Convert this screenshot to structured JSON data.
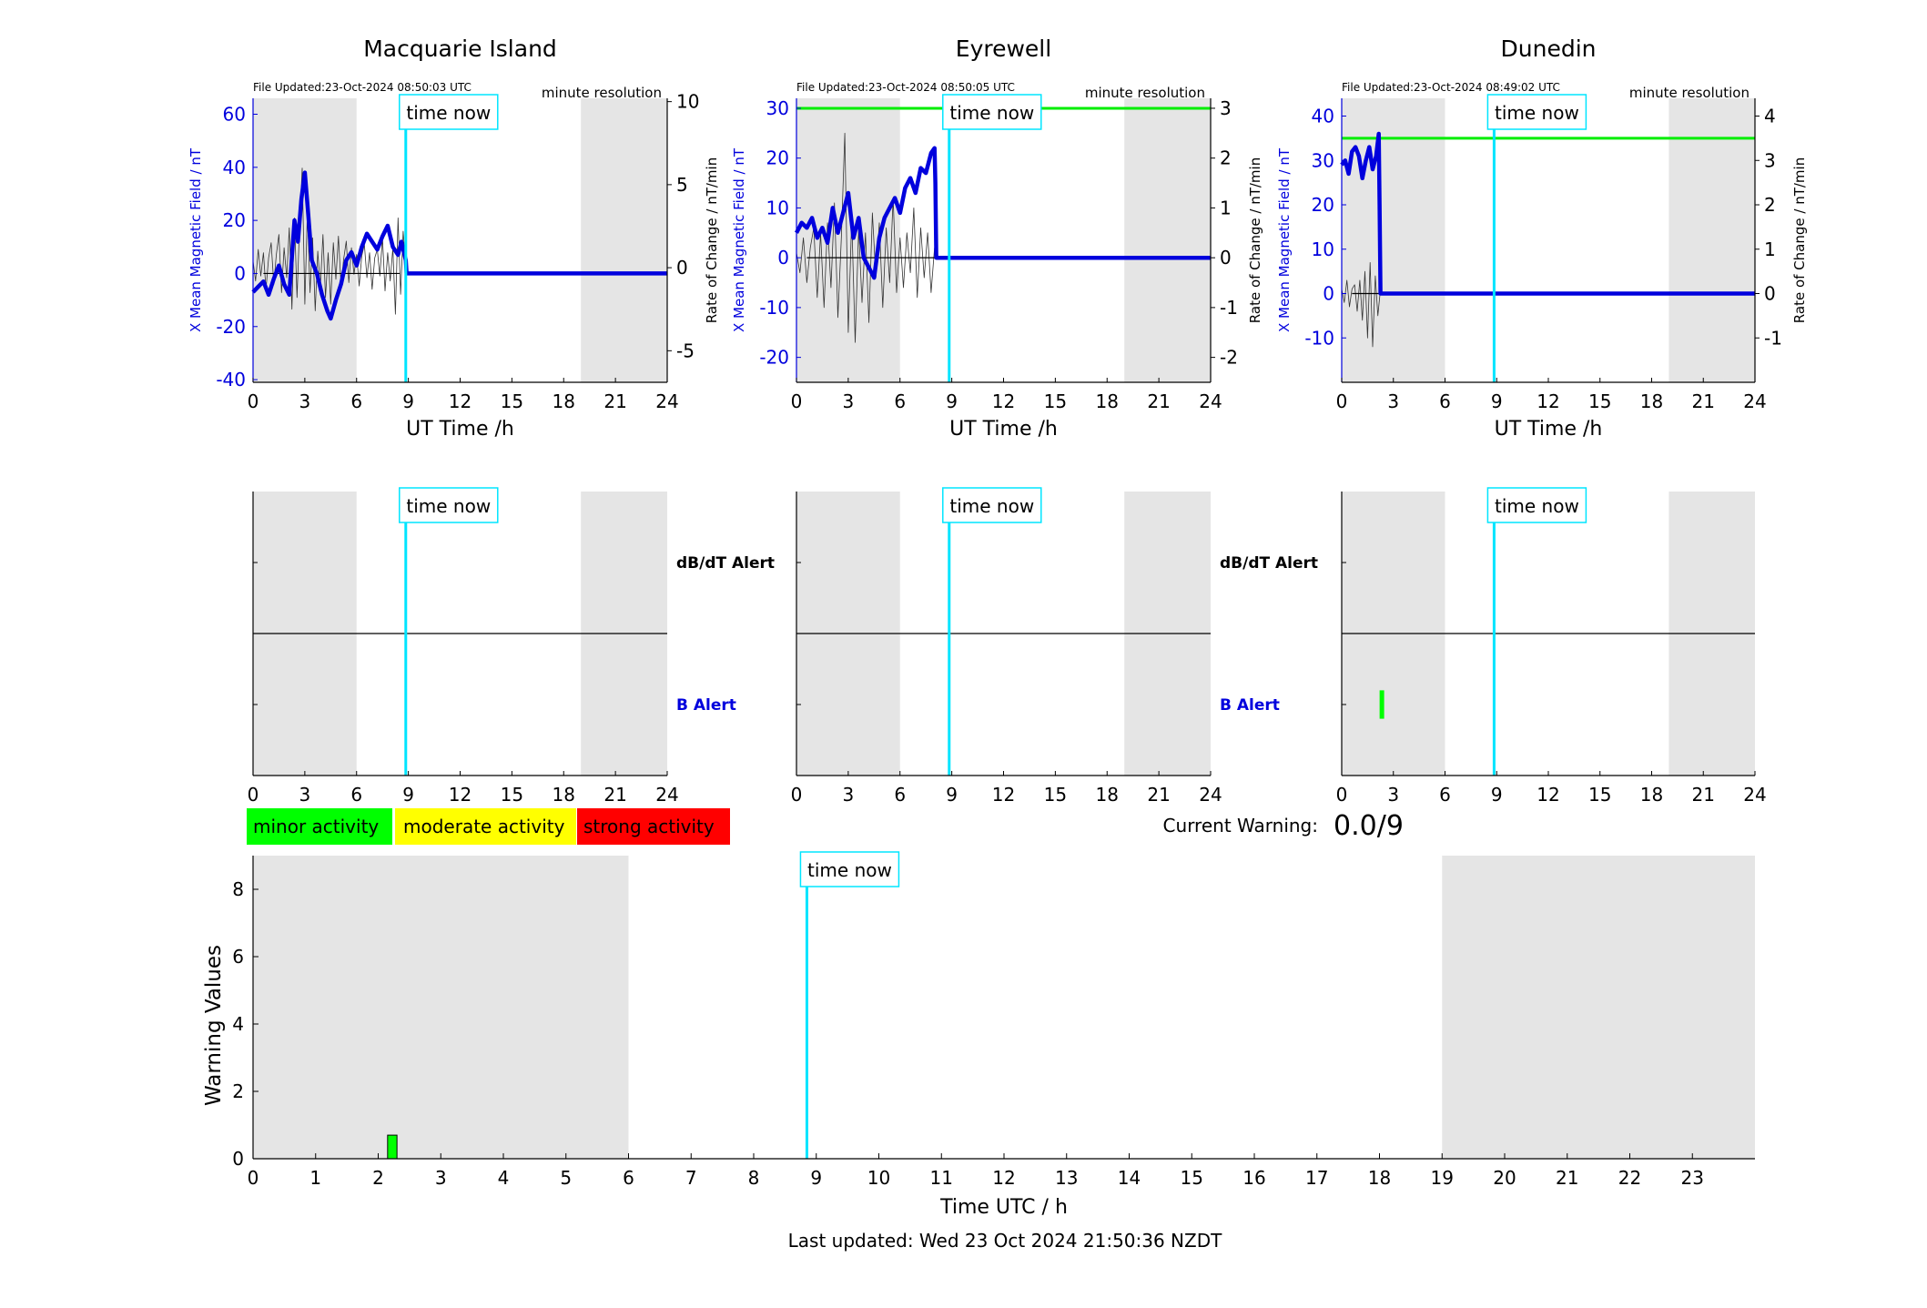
{
  "figure": {
    "last_updated": "Last updated: Wed 23 Oct 2024 21:50:36 NZDT",
    "current_warning_label": "Current Warning:",
    "current_warning_value": "0.0/9"
  },
  "legend": {
    "minor": {
      "label": "minor activity",
      "color": "#00ff00"
    },
    "moderate": {
      "label": "moderate activity",
      "color": "#ffff00"
    },
    "strong": {
      "label": "strong activity",
      "color": "#ff0000"
    }
  },
  "chart_data": [
    {
      "type": "line",
      "station": "Macquarie Island",
      "title": "Macquarie Island",
      "file_updated": "File Updated:23-Oct-2024 08:50:03 UTC",
      "resolution": "minute resolution",
      "time_now_label": "time now",
      "time_now": 8.85,
      "night_shading": [
        [
          0,
          6
        ],
        [
          19,
          24
        ]
      ],
      "xlabel": "UT Time /h",
      "ylabel": "X Mean Magnetic Field / nT",
      "y2label": "Rate of Change / nT/min",
      "xlim": [
        0,
        24
      ],
      "ylim": [
        -41,
        66
      ],
      "y2lim": [
        -6.9,
        10.2
      ],
      "xticks": [
        0,
        3,
        6,
        9,
        12,
        15,
        18,
        21,
        24
      ],
      "yticks": [
        -40,
        -20,
        0,
        20,
        40,
        60
      ],
      "y2ticks": [
        -5,
        0,
        5,
        10
      ],
      "series": [
        {
          "axis": "left",
          "color": "#0000dd",
          "x": [
            0,
            0.3,
            0.6,
            0.9,
            1.2,
            1.5,
            1.8,
            2.1,
            2.4,
            2.6,
            2.8,
            3.0,
            3.2,
            3.4,
            3.7,
            4.0,
            4.3,
            4.5,
            4.8,
            5.1,
            5.4,
            5.7,
            6.0,
            6.3,
            6.6,
            6.9,
            7.2,
            7.5,
            7.8,
            8.1,
            8.4,
            8.6,
            8.85,
            8.9,
            24
          ],
          "y": [
            -7,
            -5,
            -3,
            -8,
            -2,
            3,
            -4,
            -8,
            20,
            12,
            28,
            38,
            22,
            5,
            0,
            -8,
            -14,
            -17,
            -10,
            -4,
            5,
            8,
            3,
            10,
            15,
            12,
            9,
            14,
            18,
            10,
            7,
            12,
            5,
            0,
            0
          ]
        },
        {
          "axis": "right",
          "color": "#333333",
          "width": 0.8,
          "x": [
            0,
            0.15,
            0.3,
            0.45,
            0.6,
            0.75,
            0.9,
            1.05,
            1.2,
            1.35,
            1.5,
            1.65,
            1.8,
            1.95,
            2.1,
            2.25,
            2.4,
            2.55,
            2.7,
            2.85,
            3.0,
            3.15,
            3.3,
            3.45,
            3.6,
            3.75,
            3.9,
            4.05,
            4.2,
            4.35,
            4.5,
            4.65,
            4.8,
            4.95,
            5.1,
            5.25,
            5.4,
            5.55,
            5.7,
            5.85,
            6.0,
            6.15,
            6.3,
            6.45,
            6.6,
            6.75,
            6.9,
            7.05,
            7.2,
            7.35,
            7.5,
            7.65,
            7.8,
            7.95,
            8.1,
            8.25,
            8.4,
            8.55,
            8.7,
            8.85
          ],
          "y": [
            0.4,
            -0.8,
            1.1,
            -0.5,
            0.9,
            -1.3,
            0.6,
            1.5,
            -1.0,
            0.8,
            2.0,
            -1.5,
            1.2,
            -0.6,
            2.4,
            -2.5,
            3.0,
            -1.8,
            2.6,
            6.0,
            -2.2,
            3.4,
            -1.5,
            1.8,
            -2.6,
            1.0,
            -1.2,
            2.0,
            -1.8,
            0.9,
            -2.2,
            1.5,
            -0.7,
            1.9,
            -1.1,
            0.5,
            1.6,
            -0.9,
            1.2,
            -0.4,
            0.8,
            -1.1,
            0.7,
            1.4,
            -0.6,
            0.9,
            -1.3,
            0.6,
            1.1,
            -0.5,
            1.8,
            -1.4,
            0.9,
            -0.8,
            1.2,
            -2.8,
            3.0,
            -1.6,
            2.2,
            0.1
          ]
        }
      ],
      "threshold": null
    },
    {
      "type": "line",
      "station": "Eyrewell",
      "title": "Eyrewell",
      "file_updated": "File Updated:23-Oct-2024 08:50:05 UTC",
      "resolution": "minute resolution",
      "time_now_label": "time now",
      "time_now": 8.85,
      "night_shading": [
        [
          0,
          6
        ],
        [
          19,
          24
        ]
      ],
      "xlabel": "UT Time /h",
      "ylabel": "X Mean Magnetic Field / nT",
      "y2label": "Rate of Change / nT/min",
      "xlim": [
        0,
        24
      ],
      "ylim": [
        -25,
        32
      ],
      "y2lim": [
        -2.5,
        3.2
      ],
      "xticks": [
        0,
        3,
        6,
        9,
        12,
        15,
        18,
        21,
        24
      ],
      "yticks": [
        -20,
        -10,
        0,
        10,
        20,
        30
      ],
      "y2ticks": [
        -2,
        -1,
        0,
        1,
        2,
        3
      ],
      "series": [
        {
          "axis": "left",
          "color": "#0000dd",
          "x": [
            0,
            0.3,
            0.6,
            0.9,
            1.2,
            1.5,
            1.8,
            2.1,
            2.4,
            2.7,
            3.0,
            3.3,
            3.6,
            3.9,
            4.2,
            4.5,
            4.8,
            5.1,
            5.4,
            5.7,
            6.0,
            6.3,
            6.6,
            6.9,
            7.2,
            7.5,
            7.8,
            8.0,
            8.05,
            8.1,
            24
          ],
          "y": [
            5,
            7,
            6,
            8,
            4,
            6,
            3,
            10,
            5,
            9,
            13,
            4,
            8,
            0,
            -2,
            -4,
            4,
            8,
            10,
            12,
            9,
            14,
            16,
            13,
            18,
            17,
            21,
            22,
            15,
            0,
            0
          ]
        },
        {
          "axis": "right",
          "color": "#333333",
          "width": 0.8,
          "x": [
            0,
            0.2,
            0.4,
            0.6,
            0.8,
            1.0,
            1.2,
            1.4,
            1.6,
            1.8,
            2.0,
            2.2,
            2.4,
            2.6,
            2.8,
            3.0,
            3.2,
            3.4,
            3.6,
            3.8,
            4.0,
            4.2,
            4.4,
            4.6,
            4.8,
            5.0,
            5.2,
            5.4,
            5.6,
            5.8,
            6.0,
            6.2,
            6.4,
            6.6,
            6.8,
            7.0,
            7.2,
            7.4,
            7.6,
            7.8,
            8.0
          ],
          "y": [
            0.1,
            -0.3,
            0.4,
            -0.5,
            0.2,
            0.6,
            -0.8,
            0.5,
            -1.0,
            0.7,
            -0.6,
            1.1,
            -1.2,
            0.4,
            2.5,
            -1.5,
            0.8,
            -1.7,
            0.6,
            -0.9,
            0.5,
            -1.3,
            0.9,
            -0.4,
            0.7,
            -1.0,
            0.6,
            -0.5,
            1.2,
            -0.7,
            0.4,
            -0.6,
            0.5,
            -0.3,
            1.0,
            -0.8,
            0.6,
            -0.4,
            0.5,
            -0.7,
            0.2
          ]
        }
      ],
      "threshold": {
        "value": 30,
        "axis": "left",
        "color": "#00ee00"
      }
    },
    {
      "type": "line",
      "station": "Dunedin",
      "title": "Dunedin",
      "file_updated": "File Updated:23-Oct-2024 08:49:02 UTC",
      "resolution": "minute resolution",
      "time_now_label": "time now",
      "time_now": 8.85,
      "night_shading": [
        [
          0,
          6
        ],
        [
          19,
          24
        ]
      ],
      "xlabel": "UT Time /h",
      "ylabel": "X Mean Magnetic Field / nT",
      "y2label": "Rate of Change / nT/min",
      "xlim": [
        0,
        24
      ],
      "ylim": [
        -20,
        44
      ],
      "y2lim": [
        -2.0,
        4.4
      ],
      "xticks": [
        0,
        3,
        6,
        9,
        12,
        15,
        18,
        21,
        24
      ],
      "yticks": [
        -10,
        0,
        10,
        20,
        30,
        40
      ],
      "y2ticks": [
        -1,
        0,
        1,
        2,
        3,
        4
      ],
      "series": [
        {
          "axis": "left",
          "color": "#0000dd",
          "x": [
            0,
            0.2,
            0.4,
            0.6,
            0.8,
            1.0,
            1.2,
            1.4,
            1.6,
            1.8,
            2.0,
            2.15,
            2.2,
            2.25,
            24
          ],
          "y": [
            29,
            30,
            27,
            32,
            33,
            31,
            26,
            30,
            33,
            28,
            31,
            36,
            20,
            0,
            0
          ]
        },
        {
          "axis": "right",
          "color": "#333333",
          "width": 0.8,
          "x": [
            0,
            0.15,
            0.3,
            0.45,
            0.6,
            0.75,
            0.9,
            1.05,
            1.2,
            1.35,
            1.5,
            1.65,
            1.8,
            1.95,
            2.1,
            2.25
          ],
          "y": [
            0.1,
            -0.2,
            0.3,
            -0.3,
            0.1,
            0.2,
            -0.4,
            0.3,
            -0.6,
            0.5,
            -1.0,
            0.7,
            -1.2,
            0.4,
            -0.5,
            0.1
          ]
        }
      ],
      "threshold": {
        "value": 35,
        "axis": "left",
        "color": "#00ee00"
      }
    },
    {
      "type": "alert",
      "station": "Macquarie Island",
      "time_now_label": "time now",
      "time_now": 8.85,
      "night_shading": [
        [
          0,
          6
        ],
        [
          19,
          24
        ]
      ],
      "xlim": [
        0,
        24
      ],
      "xticks": [
        0,
        3,
        6,
        9,
        12,
        15,
        18,
        21,
        24
      ],
      "dbdt_label": "dB/dT Alert",
      "b_label": "B Alert",
      "b_alerts": [],
      "dbdt_alerts": []
    },
    {
      "type": "alert",
      "station": "Eyrewell",
      "time_now_label": "time now",
      "time_now": 8.85,
      "night_shading": [
        [
          0,
          6
        ],
        [
          19,
          24
        ]
      ],
      "xlim": [
        0,
        24
      ],
      "xticks": [
        0,
        3,
        6,
        9,
        12,
        15,
        18,
        21,
        24
      ],
      "dbdt_label": "dB/dT Alert",
      "b_label": "B Alert",
      "b_alerts": [],
      "dbdt_alerts": []
    },
    {
      "type": "alert",
      "station": "Dunedin",
      "time_now_label": "time now",
      "time_now": 8.85,
      "night_shading": [
        [
          0,
          6
        ],
        [
          19,
          24
        ]
      ],
      "xlim": [
        0,
        24
      ],
      "xticks": [
        0,
        3,
        6,
        9,
        12,
        15,
        18,
        21,
        24
      ],
      "dbdt_label": "",
      "b_label": "",
      "b_alerts": [
        {
          "start": 2.2,
          "end": 2.35,
          "level": "minor"
        }
      ],
      "dbdt_alerts": []
    },
    {
      "type": "bar",
      "title": "",
      "time_now_label": "time now",
      "time_now": 8.85,
      "night_shading": [
        [
          0,
          6
        ],
        [
          19,
          24
        ]
      ],
      "xlabel": "Time UTC / h",
      "ylabel": "Warning Values",
      "xlim": [
        0,
        24
      ],
      "ylim": [
        0,
        9
      ],
      "xticks": [
        0,
        1,
        2,
        3,
        4,
        5,
        6,
        7,
        8,
        9,
        10,
        11,
        12,
        13,
        14,
        15,
        16,
        17,
        18,
        19,
        20,
        21,
        22,
        23
      ],
      "yticks": [
        0,
        2,
        4,
        6,
        8
      ],
      "bars": [
        {
          "start": 2.15,
          "end": 2.3,
          "value": 0.7,
          "level": "minor"
        }
      ]
    }
  ]
}
